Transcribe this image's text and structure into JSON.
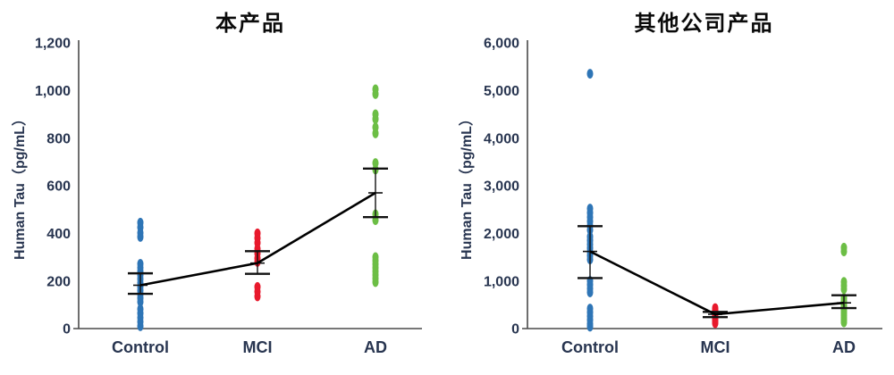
{
  "style": {
    "axis_color": "#4a4a4a",
    "label_color": "#283550",
    "title_color": "#0a0a0a",
    "stat_color": "#111111",
    "background": "#ffffff"
  },
  "chart_data": [
    {
      "type": "scatter",
      "title": "本产品",
      "ylabel": "Human Tau（pg/mL）",
      "xlabel": "",
      "categories": [
        "Control",
        "MCI",
        "AD"
      ],
      "ylim": [
        0,
        1200
      ],
      "yticks": [
        0,
        200,
        400,
        600,
        800,
        1000,
        1200
      ],
      "ytick_labels": [
        "0",
        "200",
        "400",
        "600",
        "800",
        "1,000",
        "1,200"
      ],
      "grid": false,
      "legend": "none",
      "series": [
        {
          "name": "Control",
          "color": "#2E75B6",
          "values": [
            445,
            425,
            402,
            385,
            272,
            256,
            240,
            224,
            208,
            192,
            176,
            160,
            144,
            128,
            112,
            82,
            64,
            46,
            28,
            10
          ]
        },
        {
          "name": "MCI",
          "color": "#E8192C",
          "values": [
            400,
            380,
            360,
            335,
            315,
            295,
            280,
            175,
            155,
            135
          ]
        },
        {
          "name": "AD",
          "color": "#6CBE45",
          "values": [
            1005,
            985,
            900,
            880,
            845,
            820,
            695,
            668,
            480,
            455,
            300,
            285,
            270,
            255,
            240,
            225,
            210,
            195
          ]
        }
      ],
      "summary": [
        {
          "category": "Control",
          "mean": 182,
          "upper": 232,
          "lower": 146
        },
        {
          "category": "MCI",
          "mean": 275,
          "upper": 325,
          "lower": 230
        },
        {
          "category": "AD",
          "mean": 570,
          "upper": 672,
          "lower": 468
        }
      ]
    },
    {
      "type": "scatter",
      "title": "其他公司产品",
      "ylabel": "Human Tau（pg/mL）",
      "xlabel": "",
      "categories": [
        "Control",
        "MCI",
        "AD"
      ],
      "ylim": [
        0,
        6000
      ],
      "yticks": [
        0,
        1000,
        2000,
        3000,
        4000,
        5000,
        6000
      ],
      "ytick_labels": [
        "0",
        "1,000",
        "2,000",
        "3,000",
        "4,000",
        "5,000",
        "6,000"
      ],
      "grid": false,
      "legend": "none",
      "series": [
        {
          "name": "Control",
          "color": "#2E75B6",
          "values": [
            5350,
            2520,
            2430,
            2340,
            2250,
            2160,
            2070,
            1930,
            1850,
            1770,
            1690,
            1610,
            1530,
            1450,
            1000,
            920,
            840,
            760,
            420,
            340,
            260,
            180,
            100,
            40
          ]
        },
        {
          "name": "MCI",
          "color": "#E8192C",
          "values": [
            430,
            390,
            350,
            310,
            270,
            230,
            190,
            150,
            110
          ]
        },
        {
          "name": "AD",
          "color": "#6CBE45",
          "values": [
            1700,
            1620,
            980,
            900,
            830,
            640,
            580,
            530,
            480,
            430,
            380,
            330,
            280,
            230,
            180,
            130
          ]
        }
      ],
      "summary": [
        {
          "category": "Control",
          "mean": 1620,
          "upper": 2150,
          "lower": 1060
        },
        {
          "category": "MCI",
          "mean": 300,
          "upper": 350,
          "lower": 240
        },
        {
          "category": "AD",
          "mean": 540,
          "upper": 700,
          "lower": 430
        }
      ]
    }
  ]
}
